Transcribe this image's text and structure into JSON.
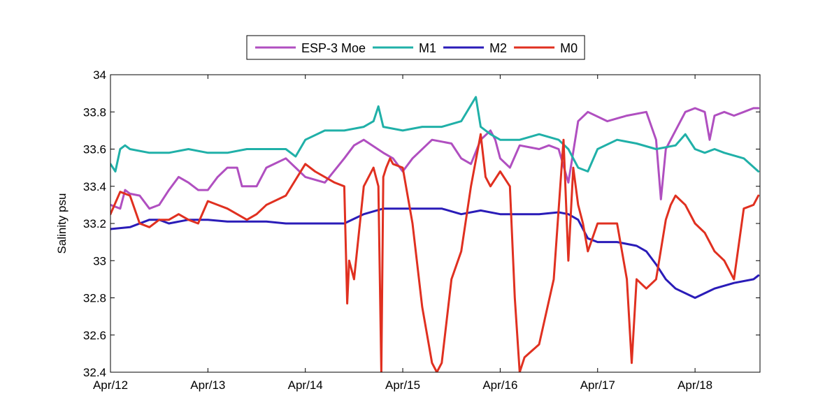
{
  "chart_data": {
    "type": "line",
    "title": "",
    "xlabel": "",
    "ylabel": "Salinity psu",
    "ylim": [
      32.4,
      34
    ],
    "xlim": [
      "Apr/12",
      "Apr/18 16:00"
    ],
    "yticks": [
      32.4,
      32.6,
      32.8,
      33,
      33.2,
      33.4,
      33.6,
      33.8,
      34
    ],
    "ytick_labels": [
      "32.4",
      "32.6",
      "32.8",
      "33",
      "33.2",
      "33.4",
      "33.6",
      "33.8",
      "34"
    ],
    "xtick_labels": [
      "Apr/12",
      "Apr/13",
      "Apr/14",
      "Apr/15",
      "Apr/16",
      "Apr/17",
      "Apr/18"
    ],
    "grid": false,
    "legend_position": "top-center",
    "x_unit": "day of April",
    "series": [
      {
        "name": "ESP-3 Moe",
        "color": "#b04fc0",
        "x": [
          12.0,
          12.1,
          12.15,
          12.2,
          12.3,
          12.4,
          12.5,
          12.6,
          12.7,
          12.8,
          12.9,
          13.0,
          13.1,
          13.2,
          13.3,
          13.35,
          13.45,
          13.5,
          13.6,
          13.8,
          13.9,
          14.0,
          14.2,
          14.4,
          14.5,
          14.6,
          14.8,
          14.9,
          15.0,
          15.1,
          15.3,
          15.5,
          15.6,
          15.7,
          15.8,
          15.9,
          15.95,
          16.0,
          16.1,
          16.2,
          16.4,
          16.5,
          16.6,
          16.7,
          16.8,
          16.9,
          17.1,
          17.3,
          17.5,
          17.6,
          17.65,
          17.7,
          17.8,
          17.9,
          18.0,
          18.1,
          18.15,
          18.2,
          18.3,
          18.4,
          18.5,
          18.6,
          18.65
        ],
        "values": [
          33.3,
          33.28,
          33.38,
          33.36,
          33.35,
          33.28,
          33.3,
          33.38,
          33.45,
          33.42,
          33.38,
          33.38,
          33.45,
          33.5,
          33.5,
          33.4,
          33.4,
          33.4,
          33.5,
          33.55,
          33.5,
          33.45,
          33.42,
          33.55,
          33.62,
          33.65,
          33.58,
          33.55,
          33.48,
          33.55,
          33.65,
          33.63,
          33.55,
          33.52,
          33.65,
          33.7,
          33.65,
          33.55,
          33.5,
          33.62,
          33.6,
          33.62,
          33.6,
          33.42,
          33.75,
          33.8,
          33.75,
          33.78,
          33.8,
          33.65,
          33.33,
          33.6,
          33.7,
          33.8,
          33.82,
          33.8,
          33.65,
          33.78,
          33.8,
          33.78,
          33.8,
          33.82,
          33.82
        ]
      },
      {
        "name": "M1",
        "color": "#20b0a8",
        "x": [
          12.0,
          12.05,
          12.1,
          12.15,
          12.2,
          12.4,
          12.6,
          12.8,
          13.0,
          13.2,
          13.4,
          13.6,
          13.8,
          13.9,
          14.0,
          14.2,
          14.4,
          14.6,
          14.7,
          14.75,
          14.8,
          15.0,
          15.2,
          15.4,
          15.6,
          15.75,
          15.8,
          15.9,
          16.0,
          16.2,
          16.4,
          16.6,
          16.7,
          16.8,
          16.9,
          17.0,
          17.2,
          17.4,
          17.6,
          17.8,
          17.9,
          18.0,
          18.1,
          18.2,
          18.3,
          18.5,
          18.65
        ],
        "values": [
          33.52,
          33.48,
          33.6,
          33.62,
          33.6,
          33.58,
          33.58,
          33.6,
          33.58,
          33.58,
          33.6,
          33.6,
          33.6,
          33.56,
          33.65,
          33.7,
          33.7,
          33.72,
          33.75,
          33.83,
          33.72,
          33.7,
          33.72,
          33.72,
          33.75,
          33.88,
          33.72,
          33.68,
          33.65,
          33.65,
          33.68,
          33.65,
          33.6,
          33.5,
          33.48,
          33.6,
          33.65,
          33.63,
          33.6,
          33.62,
          33.68,
          33.6,
          33.58,
          33.6,
          33.58,
          33.55,
          33.48
        ]
      },
      {
        "name": "M2",
        "color": "#2a1cb8",
        "x": [
          12.0,
          12.2,
          12.4,
          12.5,
          12.6,
          12.8,
          13.0,
          13.2,
          13.4,
          13.6,
          13.8,
          14.0,
          14.2,
          14.4,
          14.6,
          14.8,
          15.0,
          15.2,
          15.4,
          15.6,
          15.8,
          16.0,
          16.2,
          16.4,
          16.6,
          16.7,
          16.8,
          16.9,
          17.0,
          17.2,
          17.4,
          17.5,
          17.6,
          17.7,
          17.8,
          18.0,
          18.2,
          18.4,
          18.6,
          18.65
        ],
        "values": [
          33.17,
          33.18,
          33.22,
          33.22,
          33.2,
          33.22,
          33.22,
          33.21,
          33.21,
          33.21,
          33.2,
          33.2,
          33.2,
          33.2,
          33.25,
          33.28,
          33.28,
          33.28,
          33.28,
          33.25,
          33.27,
          33.25,
          33.25,
          33.25,
          33.26,
          33.25,
          33.22,
          33.12,
          33.1,
          33.1,
          33.08,
          33.05,
          32.98,
          32.9,
          32.85,
          32.8,
          32.85,
          32.88,
          32.9,
          32.92
        ]
      },
      {
        "name": "M0",
        "color": "#e03020",
        "x": [
          12.0,
          12.1,
          12.2,
          12.3,
          12.4,
          12.5,
          12.6,
          12.7,
          12.8,
          12.9,
          13.0,
          13.1,
          13.2,
          13.3,
          13.4,
          13.5,
          13.6,
          13.8,
          14.0,
          14.1,
          14.3,
          14.4,
          14.43,
          14.45,
          14.5,
          14.6,
          14.7,
          14.75,
          14.78,
          14.8,
          14.83,
          14.87,
          14.9,
          15.0,
          15.1,
          15.2,
          15.3,
          15.35,
          15.4,
          15.5,
          15.6,
          15.7,
          15.8,
          15.85,
          15.9,
          16.0,
          16.1,
          16.15,
          16.2,
          16.25,
          16.4,
          16.55,
          16.65,
          16.7,
          16.75,
          16.8,
          16.85,
          16.9,
          17.0,
          17.1,
          17.2,
          17.3,
          17.35,
          17.4,
          17.5,
          17.6,
          17.7,
          17.75,
          17.8,
          17.9,
          18.0,
          18.1,
          18.2,
          18.3,
          18.4,
          18.5,
          18.6,
          18.65
        ],
        "values": [
          33.25,
          33.37,
          33.35,
          33.2,
          33.18,
          33.22,
          33.22,
          33.25,
          33.22,
          33.2,
          33.32,
          33.3,
          33.28,
          33.25,
          33.22,
          33.25,
          33.3,
          33.35,
          33.52,
          33.48,
          33.42,
          33.4,
          32.77,
          33.0,
          32.9,
          33.4,
          33.5,
          33.4,
          32.4,
          33.45,
          33.5,
          33.55,
          33.52,
          33.5,
          33.2,
          32.75,
          32.45,
          32.4,
          32.45,
          32.9,
          33.05,
          33.4,
          33.68,
          33.45,
          33.4,
          33.48,
          33.4,
          32.8,
          32.4,
          32.48,
          32.55,
          32.9,
          33.65,
          33.0,
          33.5,
          33.3,
          33.2,
          33.05,
          33.2,
          33.2,
          33.2,
          32.9,
          32.45,
          32.9,
          32.85,
          32.9,
          33.22,
          33.3,
          33.35,
          33.3,
          33.2,
          33.15,
          33.05,
          33.0,
          32.9,
          33.28,
          33.3,
          33.35
        ]
      }
    ]
  }
}
